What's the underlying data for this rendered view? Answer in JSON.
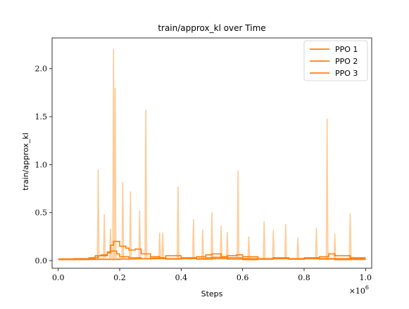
{
  "chart_data": {
    "type": "line",
    "title": "train/approx_kl over Time",
    "xlabel": "Steps",
    "ylabel": "train/approx_kl",
    "x_scale_label": "×10^6",
    "xlim": [
      -0.02,
      1.02
    ],
    "ylim": [
      -0.08,
      2.32
    ],
    "x_ticks": [
      0.0,
      0.2,
      0.4,
      0.6,
      0.8,
      1.0
    ],
    "x_tick_labels": [
      "0.0",
      "0.2",
      "0.4",
      "0.6",
      "0.8",
      "1.0"
    ],
    "y_ticks": [
      0.0,
      0.5,
      1.0,
      1.5,
      2.0
    ],
    "y_tick_labels": [
      "0.0",
      "0.5",
      "1.0",
      "1.5",
      "2.0"
    ],
    "grid": false,
    "legend_position": "top-right",
    "colors": {
      "series": "#ff7f0e",
      "raw_series": "#ffc48a"
    },
    "raw_spikes": [
      {
        "x": 0.13,
        "y": 0.95
      },
      {
        "x": 0.15,
        "y": 0.48
      },
      {
        "x": 0.17,
        "y": 0.33
      },
      {
        "x": 0.18,
        "y": 2.2
      },
      {
        "x": 0.185,
        "y": 1.8
      },
      {
        "x": 0.21,
        "y": 0.82
      },
      {
        "x": 0.235,
        "y": 0.72
      },
      {
        "x": 0.265,
        "y": 0.52
      },
      {
        "x": 0.285,
        "y": 1.57
      },
      {
        "x": 0.33,
        "y": 0.29
      },
      {
        "x": 0.34,
        "y": 0.29
      },
      {
        "x": 0.39,
        "y": 0.77
      },
      {
        "x": 0.44,
        "y": 0.43
      },
      {
        "x": 0.47,
        "y": 0.32
      },
      {
        "x": 0.5,
        "y": 0.5
      },
      {
        "x": 0.53,
        "y": 0.36
      },
      {
        "x": 0.55,
        "y": 0.3
      },
      {
        "x": 0.585,
        "y": 0.94
      },
      {
        "x": 0.62,
        "y": 0.25
      },
      {
        "x": 0.67,
        "y": 0.41
      },
      {
        "x": 0.7,
        "y": 0.32
      },
      {
        "x": 0.74,
        "y": 0.38
      },
      {
        "x": 0.78,
        "y": 0.24
      },
      {
        "x": 0.84,
        "y": 0.34
      },
      {
        "x": 0.875,
        "y": 1.48
      },
      {
        "x": 0.9,
        "y": 0.28
      },
      {
        "x": 0.95,
        "y": 0.49
      }
    ],
    "series": [
      {
        "name": "PPO 1",
        "x": [
          0.0,
          0.05,
          0.1,
          0.12,
          0.13,
          0.16,
          0.17,
          0.19,
          0.2,
          0.23,
          0.27,
          0.3,
          0.35,
          0.4,
          0.45,
          0.48,
          0.5,
          0.55,
          0.6,
          0.65,
          0.7,
          0.75,
          0.8,
          0.85,
          0.9,
          1.0
        ],
        "y": [
          0.015,
          0.015,
          0.02,
          0.03,
          0.05,
          0.08,
          0.1,
          0.07,
          0.04,
          0.03,
          0.02,
          0.025,
          0.02,
          0.025,
          0.02,
          0.03,
          0.035,
          0.03,
          0.02,
          0.015,
          0.02,
          0.015,
          0.02,
          0.02,
          0.02,
          0.02
        ]
      },
      {
        "name": "PPO 2",
        "x": [
          0.0,
          0.05,
          0.1,
          0.12,
          0.14,
          0.16,
          0.17,
          0.18,
          0.2,
          0.22,
          0.23,
          0.25,
          0.27,
          0.3,
          0.33,
          0.35,
          0.4,
          0.45,
          0.48,
          0.5,
          0.53,
          0.55,
          0.58,
          0.6,
          0.65,
          0.7,
          0.75,
          0.8,
          0.85,
          0.88,
          0.9,
          0.95,
          1.0
        ],
        "y": [
          0.015,
          0.02,
          0.03,
          0.05,
          0.06,
          0.09,
          0.16,
          0.2,
          0.15,
          0.13,
          0.11,
          0.12,
          0.07,
          0.04,
          0.03,
          0.05,
          0.03,
          0.04,
          0.06,
          0.07,
          0.04,
          0.05,
          0.06,
          0.04,
          0.02,
          0.03,
          0.02,
          0.03,
          0.04,
          0.07,
          0.05,
          0.03,
          0.03
        ]
      },
      {
        "name": "PPO 3",
        "x": [
          0.0,
          0.1,
          0.2,
          0.25,
          0.3,
          0.35,
          0.4,
          0.45,
          0.5,
          0.55,
          0.6,
          0.65,
          0.7,
          0.75,
          0.8,
          0.85,
          0.9,
          0.95,
          1.0
        ],
        "y": [
          0.01,
          0.012,
          0.015,
          0.018,
          0.02,
          0.015,
          0.02,
          0.015,
          0.02,
          0.015,
          0.01,
          0.015,
          0.02,
          0.015,
          0.02,
          0.015,
          0.01,
          0.012,
          0.01
        ]
      }
    ]
  }
}
